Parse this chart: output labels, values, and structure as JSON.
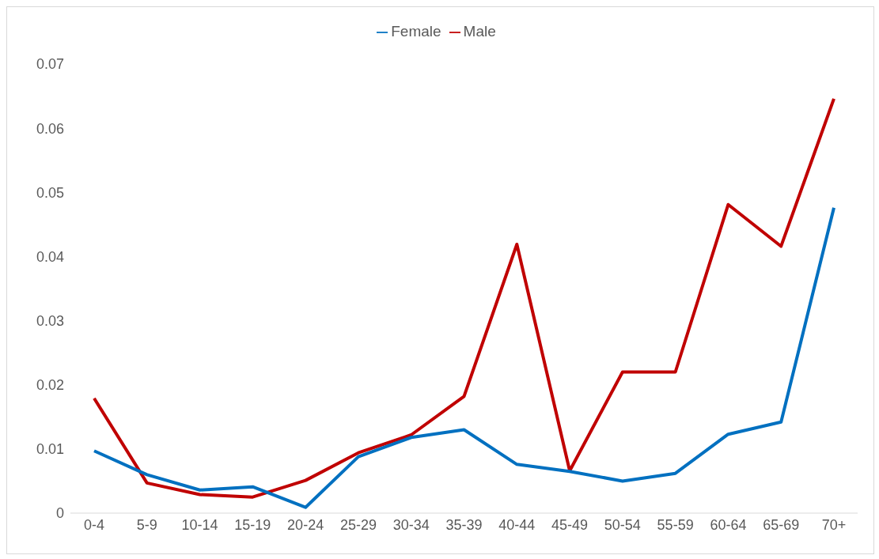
{
  "chart_data": {
    "type": "line",
    "categories": [
      "0-4",
      "5-9",
      "10-14",
      "15-19",
      "20-24",
      "25-29",
      "30-34",
      "35-39",
      "40-44",
      "45-49",
      "50-54",
      "55-59",
      "60-64",
      "65-69",
      "70+"
    ],
    "series": [
      {
        "name": "Male",
        "color": "#c00000",
        "values": [
          0.0179,
          0.0047,
          0.0029,
          0.0025,
          0.0051,
          0.0094,
          0.0122,
          0.0182,
          0.0419,
          0.0066,
          0.022,
          0.022,
          0.0481,
          0.0416,
          0.0646
        ]
      },
      {
        "name": "Female",
        "color": "#0070c0",
        "values": [
          0.0097,
          0.006,
          0.0036,
          0.0041,
          0.0009,
          0.0088,
          0.0118,
          0.013,
          0.0076,
          0.0065,
          0.005,
          0.0062,
          0.0123,
          0.0142,
          0.0476
        ]
      }
    ],
    "ylim": [
      0,
      0.07
    ],
    "yticks": [
      0,
      0.01,
      0.02,
      0.03,
      0.04,
      0.05,
      0.06,
      0.07
    ],
    "grid": false,
    "legend": "top",
    "marker": "none",
    "line_style": "solid"
  }
}
